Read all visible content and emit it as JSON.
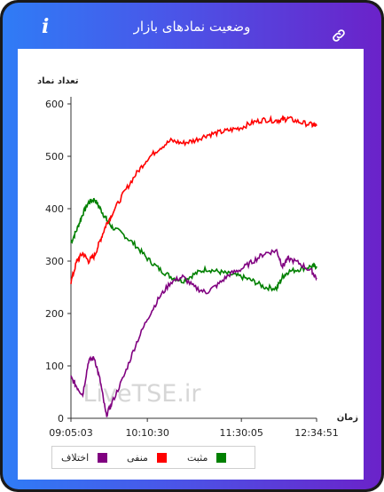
{
  "header": {
    "title": "وضعیت نمادهای بازار",
    "info_icon": "i",
    "link_icon_name": "link-icon"
  },
  "colors": {
    "accent_from": "#2f7cf6",
    "accent_to": "#6b22c9",
    "positive": "#008000",
    "negative": "#ff0000",
    "difference": "#800080"
  },
  "chart_data": {
    "type": "line",
    "ylabel": "تعداد نماد",
    "xlabel": "زمان",
    "ylim": [
      0,
      600
    ],
    "yticks": [
      "0",
      "100",
      "200",
      "300",
      "400",
      "500",
      "600"
    ],
    "xticks": [
      "09:05:03",
      "10:10:30",
      "11:30:05",
      "12:34:51"
    ],
    "grid": false,
    "legend_position": "bottom",
    "watermark": "LiveTSE.ir",
    "series": [
      {
        "name": "مثبت",
        "color": "#008000",
        "x": [
          "09:05",
          "09:10",
          "09:15",
          "09:20",
          "09:25",
          "09:30",
          "09:35",
          "09:40",
          "09:50",
          "10:00",
          "10:10",
          "10:20",
          "10:30",
          "10:40",
          "10:50",
          "11:00",
          "11:10",
          "11:20",
          "11:30",
          "11:40",
          "11:50",
          "12:00",
          "12:05",
          "12:10",
          "12:20",
          "12:30",
          "12:34"
        ],
        "values": [
          335,
          360,
          390,
          412,
          418,
          400,
          380,
          365,
          350,
          330,
          305,
          285,
          270,
          262,
          275,
          285,
          280,
          275,
          270,
          262,
          250,
          248,
          270,
          280,
          285,
          290,
          290
        ]
      },
      {
        "name": "منفی",
        "color": "#ff0000",
        "x": [
          "09:05",
          "09:10",
          "09:15",
          "09:20",
          "09:25",
          "09:30",
          "09:35",
          "09:40",
          "09:50",
          "10:00",
          "10:10",
          "10:20",
          "10:30",
          "10:40",
          "10:50",
          "11:00",
          "11:10",
          "11:20",
          "11:30",
          "11:40",
          "11:50",
          "12:00",
          "12:05",
          "12:10",
          "12:20",
          "12:30",
          "12:34"
        ],
        "values": [
          260,
          300,
          315,
          300,
          310,
          340,
          370,
          390,
          430,
          465,
          495,
          515,
          530,
          525,
          530,
          540,
          545,
          550,
          555,
          565,
          570,
          568,
          570,
          572,
          565,
          560,
          558
        ]
      },
      {
        "name": "اختلاف",
        "color": "#800080",
        "x": [
          "09:05",
          "09:10",
          "09:15",
          "09:20",
          "09:25",
          "09:30",
          "09:35",
          "09:40",
          "09:50",
          "10:00",
          "10:10",
          "10:20",
          "10:30",
          "10:40",
          "10:50",
          "11:00",
          "11:10",
          "11:20",
          "11:30",
          "11:40",
          "11:50",
          "12:00",
          "12:05",
          "12:10",
          "12:20",
          "12:30",
          "12:34"
        ],
        "values": [
          78,
          60,
          45,
          110,
          115,
          70,
          5,
          30,
          80,
          140,
          190,
          230,
          260,
          270,
          250,
          240,
          255,
          275,
          285,
          300,
          315,
          320,
          290,
          305,
          295,
          280,
          268
        ]
      }
    ]
  }
}
